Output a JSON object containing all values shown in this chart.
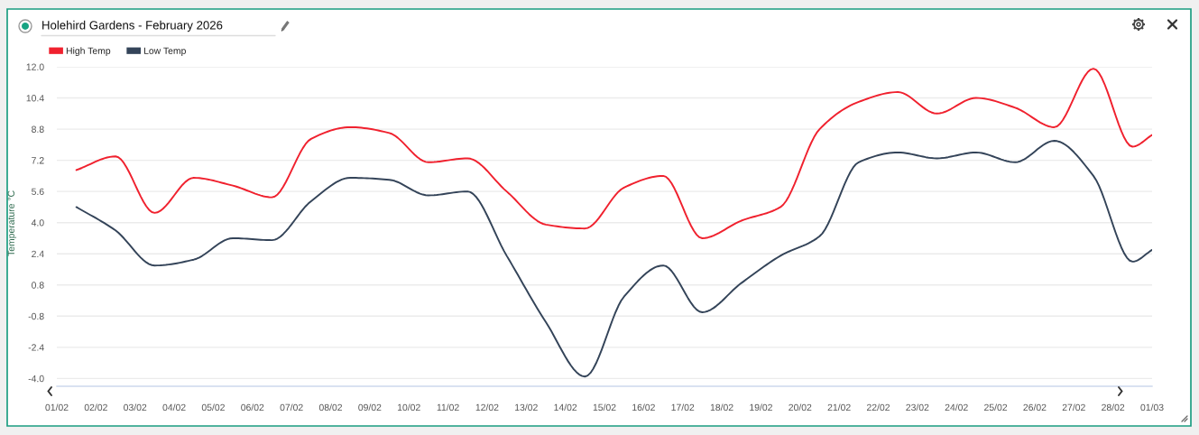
{
  "chart_data": {
    "type": "line",
    "title": "Holehird Gardens - February 2026",
    "ylabel": "Temperature °C",
    "x": [
      "2026-02-01T12:00",
      "2026-02-02T12:00",
      "2026-02-03T12:00",
      "2026-02-04T12:00",
      "2026-02-05T12:00",
      "2026-02-06T12:00",
      "2026-02-07T12:00",
      "2026-02-08T12:00",
      "2026-02-09T12:00",
      "2026-02-10T12:00",
      "2026-02-11T12:00",
      "2026-02-12T12:00",
      "2026-02-13T12:00",
      "2026-02-14T12:00",
      "2026-02-15T12:00",
      "2026-02-16T12:00",
      "2026-02-17T12:00",
      "2026-02-18T12:00",
      "2026-02-19T12:00",
      "2026-02-20T12:00",
      "2026-02-21T12:00",
      "2026-02-22T12:00",
      "2026-02-23T12:00",
      "2026-02-24T12:00",
      "2026-02-25T12:00",
      "2026-02-26T12:00",
      "2026-02-27T12:00",
      "2026-02-28T12:00",
      "2026-03-01T00:00"
    ],
    "series": [
      {
        "name": "High Temp",
        "color": "#f0212e",
        "values": [
          6.7,
          7.4,
          4.5,
          6.3,
          5.9,
          5.3,
          8.3,
          8.9,
          8.6,
          7.1,
          7.3,
          5.6,
          3.9,
          3.7,
          5.8,
          6.4,
          3.2,
          4.1,
          4.8,
          8.8,
          10.2,
          10.7,
          9.6,
          10.4,
          9.9,
          8.9,
          11.9,
          7.9,
          8.5
        ]
      },
      {
        "name": "Low Temp",
        "color": "#344459",
        "values": [
          4.8,
          3.6,
          1.8,
          2.1,
          3.2,
          3.1,
          5.1,
          6.3,
          6.2,
          5.4,
          5.6,
          2.3,
          -1.1,
          -3.9,
          0.2,
          1.8,
          -0.6,
          0.9,
          2.3,
          3.3,
          7.1,
          7.6,
          7.3,
          7.6,
          7.1,
          8.2,
          6.4,
          2.0,
          2.6
        ]
      }
    ],
    "xlim": [
      "2026-02-01",
      "2026-03-01"
    ],
    "xticks": [
      {
        "value": "2026-02-01",
        "label": "01/02"
      },
      {
        "value": "2026-02-02",
        "label": "02/02"
      },
      {
        "value": "2026-02-03",
        "label": "03/02"
      },
      {
        "value": "2026-02-04",
        "label": "04/02"
      },
      {
        "value": "2026-02-05",
        "label": "05/02"
      },
      {
        "value": "2026-02-06",
        "label": "06/02"
      },
      {
        "value": "2026-02-07",
        "label": "07/02"
      },
      {
        "value": "2026-02-08",
        "label": "08/02"
      },
      {
        "value": "2026-02-09",
        "label": "09/02"
      },
      {
        "value": "2026-02-10",
        "label": "10/02"
      },
      {
        "value": "2026-02-11",
        "label": "11/02"
      },
      {
        "value": "2026-02-12",
        "label": "12/02"
      },
      {
        "value": "2026-02-13",
        "label": "13/02"
      },
      {
        "value": "2026-02-14",
        "label": "14/02"
      },
      {
        "value": "2026-02-15",
        "label": "15/02"
      },
      {
        "value": "2026-02-16",
        "label": "16/02"
      },
      {
        "value": "2026-02-17",
        "label": "17/02"
      },
      {
        "value": "2026-02-18",
        "label": "18/02"
      },
      {
        "value": "2026-02-19",
        "label": "19/02"
      },
      {
        "value": "2026-02-20",
        "label": "20/02"
      },
      {
        "value": "2026-02-21",
        "label": "21/02"
      },
      {
        "value": "2026-02-22",
        "label": "22/02"
      },
      {
        "value": "2026-02-23",
        "label": "23/02"
      },
      {
        "value": "2026-02-24",
        "label": "24/02"
      },
      {
        "value": "2026-02-25",
        "label": "25/02"
      },
      {
        "value": "2026-02-26",
        "label": "26/02"
      },
      {
        "value": "2026-02-27",
        "label": "27/02"
      },
      {
        "value": "2026-02-28",
        "label": "28/02"
      },
      {
        "value": "2026-03-01",
        "label": "01/03"
      }
    ],
    "ylim": [
      -4.4,
      12.0
    ],
    "yticks": [
      {
        "value": 12.0,
        "label": "12.0"
      },
      {
        "value": 10.4,
        "label": "10.4"
      },
      {
        "value": 8.8,
        "label": "8.8"
      },
      {
        "value": 7.2,
        "label": "7.2"
      },
      {
        "value": 5.6,
        "label": "5.6"
      },
      {
        "value": 4.0,
        "label": "4.0"
      },
      {
        "value": 2.4,
        "label": "2.4"
      },
      {
        "value": 0.8,
        "label": "0.8"
      },
      {
        "value": -0.8,
        "label": "-0.8"
      },
      {
        "value": -2.4,
        "label": "-2.4"
      },
      {
        "value": -4.0,
        "label": "-4.0"
      }
    ],
    "grid": "y",
    "legend": "top left",
    "line_style": "solid"
  }
}
